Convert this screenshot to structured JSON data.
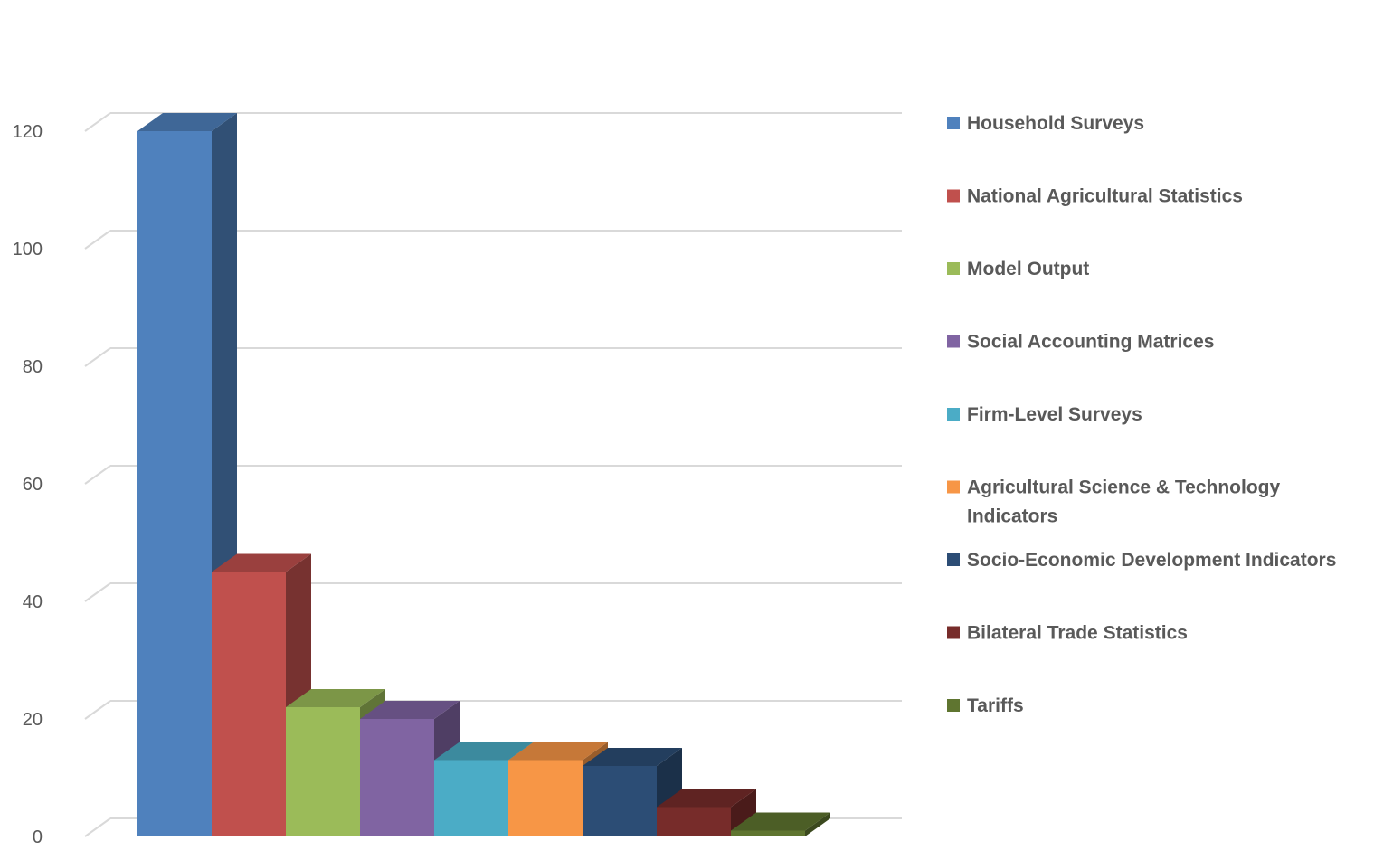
{
  "chart_data": {
    "type": "bar",
    "title": "",
    "xlabel": "",
    "ylabel": "",
    "ylim": [
      0,
      120
    ],
    "yticks": [
      0,
      20,
      40,
      60,
      80,
      100,
      120
    ],
    "grid": true,
    "legend_position": "right",
    "style": "3d-bar",
    "categories": [
      "Household Surveys",
      "National Agricultural Statistics",
      "Model Output",
      "Social Accounting Matrices",
      "Firm-Level Surveys",
      "Agricultural Science & Technology Indicators",
      "Socio-Economic Development Indicators",
      "Bilateral Trade Statistics",
      "Tariffs"
    ],
    "legend_lines": [
      [
        "Household Surveys"
      ],
      [
        "National Agricultural Statistics"
      ],
      [
        "Model Output"
      ],
      [
        "Social Accounting Matrices"
      ],
      [
        "Firm-Level Surveys"
      ],
      [
        "Agricultural Science & Technology",
        "Indicators"
      ],
      [
        "Socio-Economic Development Indicators"
      ],
      [
        "Bilateral Trade Statistics"
      ],
      [
        "Tariffs"
      ]
    ],
    "values": [
      120,
      45,
      22,
      20,
      13,
      13,
      12,
      5,
      1
    ],
    "colors": [
      "#4F81BD",
      "#C0504D",
      "#9BBB59",
      "#8064A2",
      "#4BACC6",
      "#F79646",
      "#2C4D75",
      "#772C2A",
      "#5F7530"
    ]
  }
}
